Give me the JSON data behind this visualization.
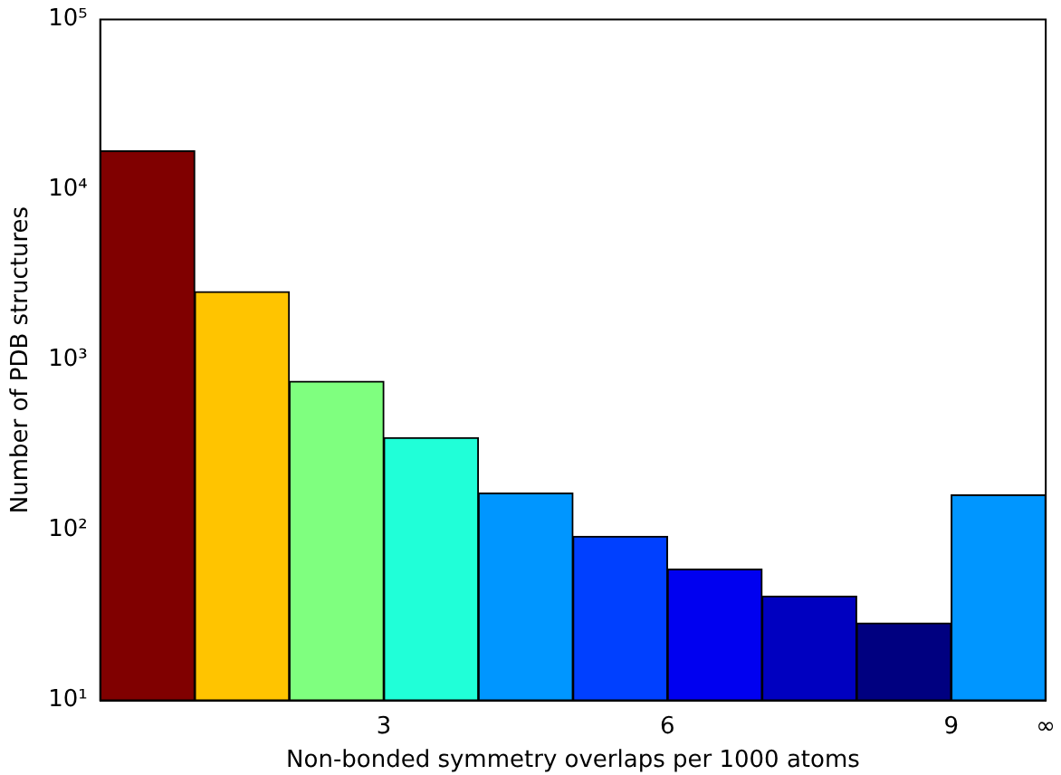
{
  "chart_data": {
    "type": "histogram",
    "xlabel": "Non-bonded symmetry overlaps per 1000 atoms",
    "ylabel": "Number of PDB structures",
    "bins": [
      0,
      1,
      2,
      3,
      4,
      5,
      6,
      7,
      8,
      9,
      10
    ],
    "values": [
      16900,
      2520,
      750,
      350,
      165,
      92,
      59,
      41,
      28.5,
      161
    ],
    "colors": [
      "#800000",
      "#ffc400",
      "#7fff7f",
      "#20ffd8",
      "#0096ff",
      "#0040ff",
      "#0000f0",
      "#0000c0",
      "#000080",
      "#0096ff"
    ],
    "log": "y",
    "xlim": [
      0,
      10
    ],
    "ylim": [
      10,
      100000
    ],
    "xticks": [
      3,
      6,
      9,
      {
        "value": 10,
        "label": "∞"
      }
    ],
    "yticks": [
      {
        "value": 10,
        "label": "10¹"
      },
      {
        "value": 100,
        "label": "10²"
      },
      {
        "value": 1000,
        "label": "10³"
      },
      {
        "value": 10000,
        "label": "10⁴"
      },
      {
        "value": 100000,
        "label": "10⁵"
      }
    ],
    "grid": false,
    "legend": false
  }
}
